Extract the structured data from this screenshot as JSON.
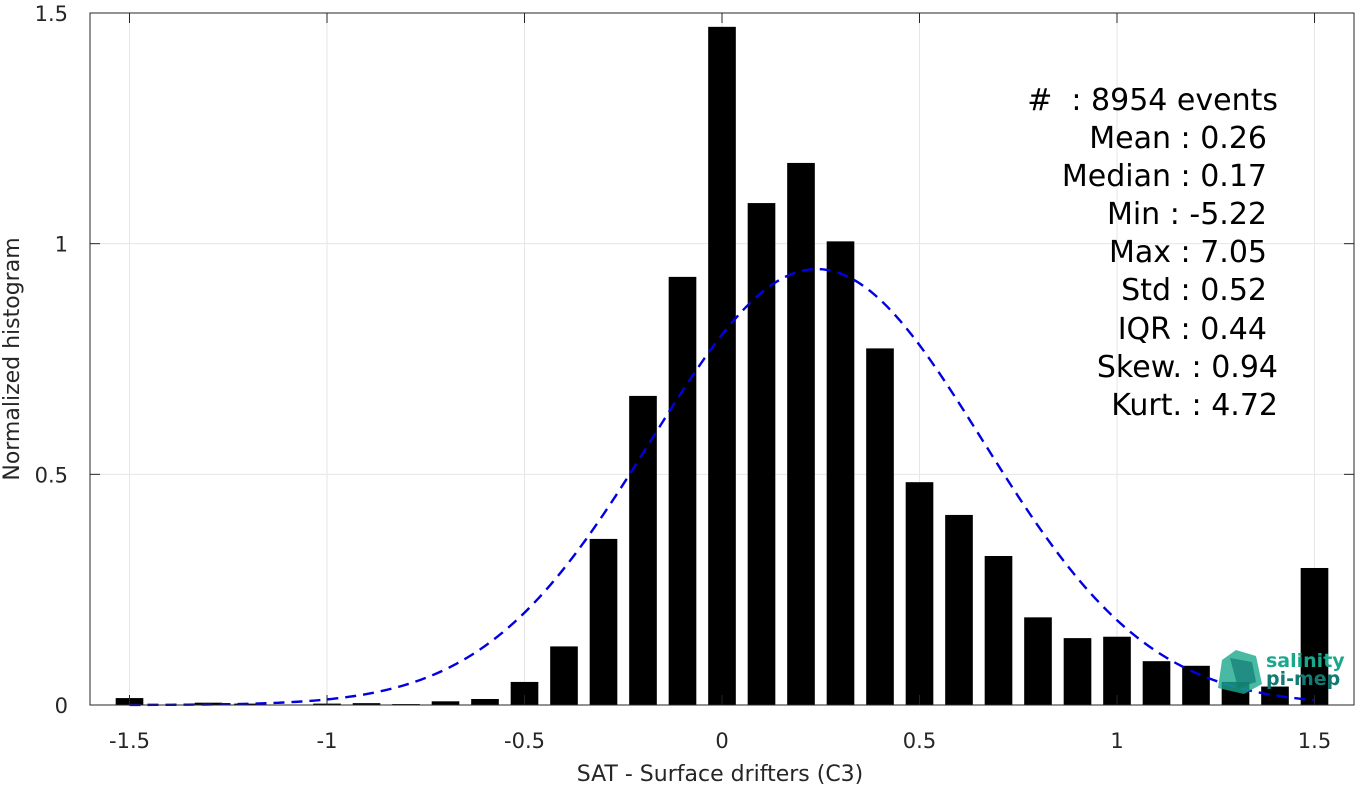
{
  "chart_data": {
    "type": "bar",
    "xlabel": "SAT - Surface drifters (C3)",
    "ylabel": "Normalized histogram",
    "xlim": [
      -1.6,
      1.6
    ],
    "ylim": [
      0,
      1.5
    ],
    "xticks": [
      -1.5,
      -1,
      -0.5,
      0,
      0.5,
      1,
      1.5
    ],
    "xtick_labels": [
      "-1.5",
      "-1",
      "-0.5",
      "0",
      "0.5",
      "1",
      "1.5"
    ],
    "yticks": [
      0,
      0.5,
      1,
      1.5
    ],
    "ytick_labels": [
      "0",
      "0.5",
      "1",
      "1.5"
    ],
    "grid": true,
    "bar_width": 0.07,
    "bar_color": "#000000",
    "bars": {
      "x": [
        -1.5,
        -1.4,
        -1.3,
        -1.2,
        -1.1,
        -1.0,
        -0.9,
        -0.8,
        -0.7,
        -0.6,
        -0.5,
        -0.4,
        -0.3,
        -0.2,
        -0.1,
        0.0,
        0.1,
        0.2,
        0.3,
        0.4,
        0.5,
        0.6,
        0.7,
        0.8,
        0.9,
        1.0,
        1.1,
        1.2,
        1.3,
        1.4,
        1.5
      ],
      "values": [
        0.015,
        0.0,
        0.005,
        0.003,
        0.0,
        0.003,
        0.004,
        0.002,
        0.008,
        0.013,
        0.05,
        0.127,
        0.36,
        0.67,
        0.928,
        1.47,
        1.088,
        1.175,
        1.005,
        0.773,
        0.483,
        0.412,
        0.323,
        0.19,
        0.145,
        0.148,
        0.095,
        0.085,
        0.05,
        0.04,
        0.297
      ]
    },
    "fit_curve": {
      "style": "dashed",
      "color": "#0000e0",
      "mean": 0.24,
      "std": 0.42,
      "peak": 0.945,
      "x_range": [
        -1.5,
        1.5
      ]
    },
    "stats": [
      {
        "label": "#  : 8954 events"
      },
      {
        "label": "Mean : 0.26"
      },
      {
        "label": "Median : 0.17"
      },
      {
        "label": "Min : -5.22"
      },
      {
        "label": "Max : 7.05"
      },
      {
        "label": "Std : 0.52"
      },
      {
        "label": "IQR : 0.44"
      },
      {
        "label": "Skew. : 0.94"
      },
      {
        "label": "Kurt. : 4.72"
      }
    ]
  },
  "logo": {
    "line1": "salinity",
    "line2": "pi-mep",
    "color1": "#1aa88c",
    "color2": "#127a73"
  }
}
